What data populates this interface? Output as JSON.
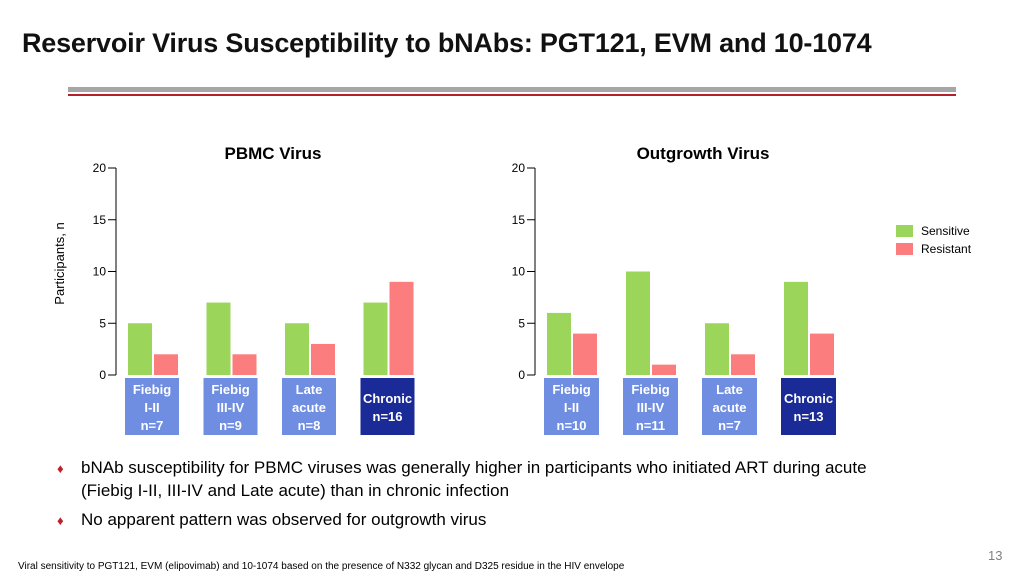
{
  "title": "Reservoir Virus Susceptibility to bNAbs: PGT121, EVM and 10-1074",
  "colors": {
    "sensitive": "#9bd65a",
    "resistant": "#fb7d7d",
    "acute_box": "#6f8ee2",
    "chronic_box": "#1a2a96",
    "accent": "#b3202a"
  },
  "legend": [
    {
      "label": "Sensitive",
      "color": "#9bd65a"
    },
    {
      "label": "Resistant",
      "color": "#fb7d7d"
    }
  ],
  "chart_data": [
    {
      "type": "bar",
      "title": "PBMC Virus",
      "ylabel": "Participants, n",
      "ylim": [
        0,
        20
      ],
      "yticks": [
        "0",
        "5",
        "10",
        "15",
        "20"
      ],
      "categories": [
        [
          "Fiebig",
          "I-II",
          "n=7"
        ],
        [
          "Fiebig",
          "III-IV",
          "n=9"
        ],
        [
          "Late",
          "acute",
          "n=8"
        ],
        [
          "Chronic",
          "n=16"
        ]
      ],
      "series": [
        {
          "name": "Sensitive",
          "values": [
            5,
            7,
            5,
            7
          ]
        },
        {
          "name": "Resistant",
          "values": [
            2,
            2,
            3,
            9
          ]
        }
      ]
    },
    {
      "type": "bar",
      "title": "Outgrowth Virus",
      "ylabel": "",
      "ylim": [
        0,
        20
      ],
      "yticks": [
        "0",
        "5",
        "10",
        "15",
        "20"
      ],
      "categories": [
        [
          "Fiebig",
          "I-II",
          "n=10"
        ],
        [
          "Fiebig",
          "III-IV",
          "n=11"
        ],
        [
          "Late",
          "acute",
          "n=7"
        ],
        [
          "Chronic",
          "n=13"
        ]
      ],
      "series": [
        {
          "name": "Sensitive",
          "values": [
            6,
            10,
            5,
            9
          ]
        },
        {
          "name": "Resistant",
          "values": [
            4,
            1,
            2,
            4
          ]
        }
      ]
    }
  ],
  "bullets": [
    {
      "lines": [
        "bNAb susceptibility for PBMC viruses was generally higher in participants who initiated ART during acute",
        "(Fiebig I-II, III-IV and Late acute) than in chronic infection"
      ]
    },
    {
      "lines": [
        "No apparent pattern was observed for outgrowth virus"
      ]
    }
  ],
  "footnote": "Viral sensitivity to PGT121, EVM (elipovimab) and 10-1074 based on the presence of N332 glycan and D325 residue in the HIV envelope",
  "page_number": "13"
}
